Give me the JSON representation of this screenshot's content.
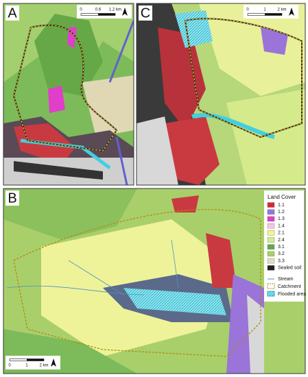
{
  "panels": [
    {
      "label": "A",
      "scale": [
        "0",
        "0.6",
        "1.2 km"
      ]
    },
    {
      "label": "B",
      "scale": [
        "0",
        "1",
        "2 km"
      ]
    },
    {
      "label": "C",
      "scale": [
        "0",
        "1",
        "2 km"
      ]
    }
  ],
  "legend": {
    "title": "Land Cover",
    "land_cover": [
      {
        "label": "1.1",
        "color": "#d42a2f"
      },
      {
        "label": "1.2",
        "color": "#9a74d8"
      },
      {
        "label": "1.3",
        "color": "#e03fc9"
      },
      {
        "label": "1.4",
        "color": "#f4c9df"
      },
      {
        "label": "2.1",
        "color": "#f1f58b"
      },
      {
        "label": "2.4",
        "color": "#d5eb8b"
      },
      {
        "label": "3.1",
        "color": "#5dab4a"
      },
      {
        "label": "3.2",
        "color": "#a9cf6b"
      },
      {
        "label": "3.3",
        "color": "#e5dcc0"
      },
      {
        "label": "Sealed soil",
        "color": "#222222"
      }
    ],
    "stream": "Stream",
    "catchment": "Catchment",
    "flooded_area": "Flooded area"
  }
}
